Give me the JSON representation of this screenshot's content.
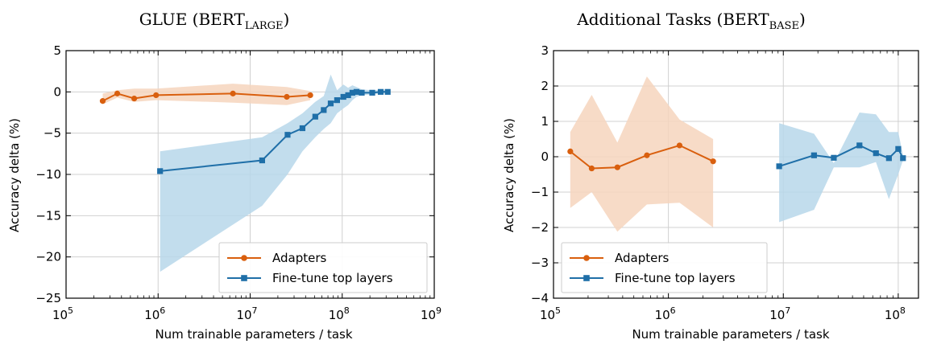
{
  "colors": {
    "adapters": "#d95f0e",
    "adapters_band": "#f6d5bd",
    "finetune": "#1f6fa8",
    "finetune_band": "#b7d7ea",
    "grid": "#d0d0d0"
  },
  "chart_data": [
    {
      "type": "line",
      "title_main": "GLUE (BERT",
      "title_sub": "LARGE",
      "title_close": ")",
      "xlabel": "Num trainable parameters / task",
      "ylabel": "Accuracy delta (%)",
      "xscale": "log",
      "xlim": [
        100000,
        1000000000
      ],
      "ylim": [
        -25,
        5
      ],
      "xticks": [
        {
          "value": 100000,
          "base": "10",
          "exp": "5"
        },
        {
          "value": 1000000,
          "base": "10",
          "exp": "6"
        },
        {
          "value": 10000000,
          "base": "10",
          "exp": "7"
        },
        {
          "value": 100000000,
          "base": "10",
          "exp": "8"
        },
        {
          "value": 1000000000,
          "base": "10",
          "exp": "9"
        }
      ],
      "yticks": [
        {
          "value": 5,
          "label": "5"
        },
        {
          "value": 0,
          "label": "0"
        },
        {
          "value": -5,
          "label": "−5"
        },
        {
          "value": -10,
          "label": "−10"
        },
        {
          "value": -15,
          "label": "−15"
        },
        {
          "value": -20,
          "label": "−20"
        },
        {
          "value": -25,
          "label": "−25"
        }
      ],
      "grid": true,
      "legend_position": "lower-right",
      "series": [
        {
          "name": "Adapters",
          "marker": "circle",
          "color_key": "adapters",
          "x": [
            250000,
            360000,
            550000,
            950000,
            6500000,
            25000000,
            45000000
          ],
          "y": [
            -1.1,
            -0.2,
            -0.8,
            -0.4,
            -0.2,
            -0.6,
            -0.4
          ],
          "band_upper": [
            -0.2,
            0.2,
            0.4,
            0.4,
            1.0,
            0.6,
            0.1
          ],
          "band_lower": [
            -1.5,
            -0.7,
            -1.2,
            -1.0,
            -1.3,
            -1.6,
            -1.0
          ]
        },
        {
          "name": "Fine-tune top layers",
          "marker": "square",
          "color_key": "finetune",
          "x": [
            1050000,
            13500000,
            25500000,
            37000000,
            51000000,
            63000000,
            75000000,
            88000000,
            103000000,
            116000000,
            129000000,
            143000000,
            163000000,
            212000000,
            262000000,
            312000000
          ],
          "y": [
            -9.6,
            -8.3,
            -5.2,
            -4.4,
            -3.0,
            -2.2,
            -1.4,
            -1.0,
            -0.6,
            -0.4,
            -0.1,
            0.0,
            -0.1,
            -0.1,
            0.0,
            0.0
          ],
          "band_upper": [
            -7.2,
            -5.5,
            -3.8,
            -2.6,
            -1.2,
            -0.5,
            2.1,
            0.2,
            0.9,
            0.5,
            0.8,
            0.6,
            0.3,
            0.2,
            0.2,
            0.1
          ],
          "band_lower": [
            -21.8,
            -13.8,
            -10.0,
            -7.2,
            -5.5,
            -4.5,
            -3.8,
            -2.6,
            -2.0,
            -1.6,
            -1.0,
            -0.6,
            -0.4,
            -0.3,
            -0.2,
            -0.1
          ]
        }
      ]
    },
    {
      "type": "line",
      "title_main": "Additional Tasks (BERT",
      "title_sub": "BASE",
      "title_close": ")",
      "xlabel": "Num trainable parameters / task",
      "ylabel": "Accuracy delta (%)",
      "xscale": "log",
      "xlim": [
        100000,
        150000000
      ],
      "ylim": [
        -4,
        3
      ],
      "xticks": [
        {
          "value": 100000,
          "base": "10",
          "exp": "5"
        },
        {
          "value": 1000000,
          "base": "10",
          "exp": "6"
        },
        {
          "value": 10000000,
          "base": "10",
          "exp": "7"
        },
        {
          "value": 100000000,
          "base": "10",
          "exp": "8"
        }
      ],
      "yticks": [
        {
          "value": 3,
          "label": "3"
        },
        {
          "value": 2,
          "label": "2"
        },
        {
          "value": 1,
          "label": "1"
        },
        {
          "value": 0,
          "label": "0"
        },
        {
          "value": -1,
          "label": "−1"
        },
        {
          "value": -2,
          "label": "−2"
        },
        {
          "value": -3,
          "label": "−3"
        },
        {
          "value": -4,
          "label": "−4"
        }
      ],
      "grid": true,
      "legend_position": "lower-left",
      "series": [
        {
          "name": "Adapters",
          "marker": "circle",
          "color_key": "adapters",
          "x": [
            140000,
            215000,
            360000,
            650000,
            1250000,
            2450000
          ],
          "y": [
            0.15,
            -0.33,
            -0.3,
            0.04,
            0.32,
            -0.13
          ],
          "band_upper": [
            0.7,
            1.75,
            0.4,
            2.27,
            1.05,
            0.5
          ],
          "band_lower": [
            -1.45,
            -1.0,
            -2.12,
            -1.35,
            -1.3,
            -2.0
          ]
        },
        {
          "name": "Fine-tune top layers",
          "marker": "square",
          "color_key": "finetune",
          "x": [
            9200000,
            18500000,
            27500000,
            46000000,
            64000000,
            83000000,
            100000000,
            110000000
          ],
          "y": [
            -0.27,
            0.04,
            -0.03,
            0.32,
            0.1,
            -0.04,
            0.22,
            -0.04
          ],
          "band_upper": [
            0.95,
            0.65,
            -0.18,
            1.25,
            1.2,
            0.7,
            0.7,
            0.05
          ],
          "band_lower": [
            -1.85,
            -1.5,
            -0.3,
            -0.3,
            -0.15,
            -1.2,
            -0.5,
            -0.1
          ]
        }
      ]
    }
  ]
}
